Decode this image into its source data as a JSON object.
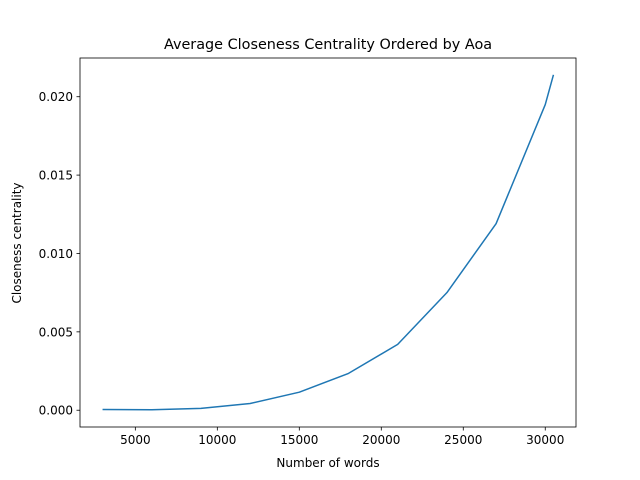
{
  "chart_data": {
    "type": "line",
    "title": "Average Closeness Centrality Ordered by Aoa",
    "xlabel": "Number of words",
    "ylabel": "Closeness centrality",
    "xlim": [
      1625,
      31875
    ],
    "ylim": [
      -0.00107,
      0.02247
    ],
    "xticks": [
      5000,
      10000,
      15000,
      20000,
      25000,
      30000
    ],
    "yticks": [
      0.0,
      0.005,
      0.01,
      0.015,
      0.02
    ],
    "xtick_labels": [
      "5000",
      "10000",
      "15000",
      "20000",
      "25000",
      "30000"
    ],
    "ytick_labels": [
      "0.000",
      "0.005",
      "0.010",
      "0.015",
      "0.020"
    ],
    "grid": false,
    "series": [
      {
        "color": "#1f77b4",
        "x": [
          3000,
          6000,
          9000,
          12000,
          15000,
          18000,
          21000,
          24000,
          27000,
          30000,
          30500
        ],
        "y": [
          5e-05,
          3e-05,
          0.00012,
          0.00043,
          0.00115,
          0.00235,
          0.0042,
          0.0075,
          0.0119,
          0.0195,
          0.0214
        ]
      }
    ]
  }
}
